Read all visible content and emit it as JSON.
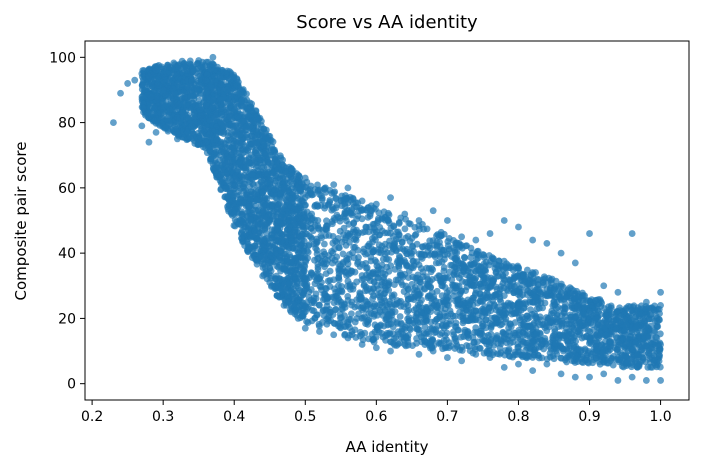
{
  "chart_data": {
    "type": "scatter",
    "title": "Score vs AA identity",
    "xlabel": "AA identity",
    "ylabel": "Composite pair score",
    "xlim": [
      0.19,
      1.04
    ],
    "ylim": [
      -5,
      105
    ],
    "xticks": [
      0.2,
      0.3,
      0.4,
      0.5,
      0.6,
      0.7,
      0.8,
      0.9,
      1.0
    ],
    "xtick_labels": [
      "0.2",
      "0.3",
      "0.4",
      "0.5",
      "0.6",
      "0.7",
      "0.8",
      "0.9",
      "1.0"
    ],
    "yticks": [
      0,
      20,
      40,
      60,
      80,
      100
    ],
    "ytick_labels": [
      "0",
      "20",
      "40",
      "60",
      "80",
      "100"
    ],
    "grid": false,
    "marker_color": "#1f77b4",
    "series": [
      {
        "points": [
          [
            0.23,
            80
          ],
          [
            0.24,
            89
          ],
          [
            0.25,
            92
          ],
          [
            0.26,
            93
          ],
          [
            0.27,
            95
          ],
          [
            0.28,
            94
          ],
          [
            0.29,
            96
          ],
          [
            0.27,
            79
          ],
          [
            0.28,
            74
          ],
          [
            0.29,
            77
          ],
          [
            0.3,
            90
          ],
          [
            0.3,
            85
          ],
          [
            0.31,
            97
          ],
          [
            0.31,
            84
          ],
          [
            0.32,
            92
          ],
          [
            0.32,
            75
          ],
          [
            0.33,
            97
          ],
          [
            0.33,
            88
          ],
          [
            0.34,
            90
          ],
          [
            0.34,
            79
          ],
          [
            0.35,
            99
          ],
          [
            0.35,
            85
          ],
          [
            0.36,
            93
          ],
          [
            0.36,
            74
          ],
          [
            0.37,
            100
          ],
          [
            0.37,
            87
          ],
          [
            0.38,
            94
          ],
          [
            0.38,
            66
          ],
          [
            0.39,
            90
          ],
          [
            0.39,
            57
          ],
          [
            0.4,
            94
          ],
          [
            0.4,
            52
          ],
          [
            0.41,
            85
          ],
          [
            0.41,
            46
          ],
          [
            0.42,
            82
          ],
          [
            0.42,
            42
          ],
          [
            0.43,
            80
          ],
          [
            0.43,
            38
          ],
          [
            0.44,
            76
          ],
          [
            0.44,
            33
          ],
          [
            0.45,
            70
          ],
          [
            0.45,
            31
          ],
          [
            0.46,
            68
          ],
          [
            0.46,
            27
          ],
          [
            0.47,
            60
          ],
          [
            0.47,
            24
          ],
          [
            0.48,
            66
          ],
          [
            0.48,
            22
          ],
          [
            0.49,
            60
          ],
          [
            0.49,
            20
          ],
          [
            0.5,
            63
          ],
          [
            0.5,
            17
          ],
          [
            0.52,
            58
          ],
          [
            0.52,
            16
          ],
          [
            0.54,
            61
          ],
          [
            0.54,
            15
          ],
          [
            0.56,
            60
          ],
          [
            0.56,
            14
          ],
          [
            0.58,
            56
          ],
          [
            0.58,
            12
          ],
          [
            0.6,
            55
          ],
          [
            0.6,
            11
          ],
          [
            0.62,
            57
          ],
          [
            0.62,
            10
          ],
          [
            0.64,
            52
          ],
          [
            0.64,
            12
          ],
          [
            0.66,
            50
          ],
          [
            0.66,
            9
          ],
          [
            0.68,
            53
          ],
          [
            0.68,
            10
          ],
          [
            0.7,
            50
          ],
          [
            0.7,
            8
          ],
          [
            0.72,
            45
          ],
          [
            0.72,
            7
          ],
          [
            0.74,
            44
          ],
          [
            0.74,
            9
          ],
          [
            0.76,
            46
          ],
          [
            0.76,
            8
          ],
          [
            0.78,
            50
          ],
          [
            0.78,
            5
          ],
          [
            0.8,
            48
          ],
          [
            0.8,
            6
          ],
          [
            0.82,
            44
          ],
          [
            0.82,
            4
          ],
          [
            0.84,
            43
          ],
          [
            0.84,
            6
          ],
          [
            0.86,
            40
          ],
          [
            0.86,
            3
          ],
          [
            0.88,
            37
          ],
          [
            0.88,
            2
          ],
          [
            0.9,
            46
          ],
          [
            0.9,
            2
          ],
          [
            0.92,
            30
          ],
          [
            0.92,
            3
          ],
          [
            0.94,
            28
          ],
          [
            0.94,
            1
          ],
          [
            0.96,
            46
          ],
          [
            0.96,
            2
          ],
          [
            0.98,
            25
          ],
          [
            0.98,
            1
          ],
          [
            1.0,
            24
          ],
          [
            1.0,
            1
          ],
          [
            1.0,
            12
          ],
          [
            1.0,
            28
          ]
        ],
        "band": [
          [
            0.27,
            83,
            96
          ],
          [
            0.3,
            78,
            98
          ],
          [
            0.33,
            75,
            99
          ],
          [
            0.36,
            72,
            99
          ],
          [
            0.38,
            60,
            97
          ],
          [
            0.4,
            48,
            95
          ],
          [
            0.42,
            40,
            88
          ],
          [
            0.44,
            34,
            80
          ],
          [
            0.46,
            27,
            72
          ],
          [
            0.48,
            22,
            66
          ],
          [
            0.5,
            19,
            62
          ],
          [
            0.55,
            15,
            59
          ],
          [
            0.6,
            12,
            54
          ],
          [
            0.65,
            11,
            50
          ],
          [
            0.7,
            10,
            46
          ],
          [
            0.75,
            9,
            40
          ],
          [
            0.8,
            8,
            36
          ],
          [
            0.85,
            7,
            32
          ],
          [
            0.9,
            6,
            27
          ],
          [
            0.95,
            5,
            24
          ],
          [
            1.0,
            5,
            24
          ]
        ]
      }
    ]
  }
}
